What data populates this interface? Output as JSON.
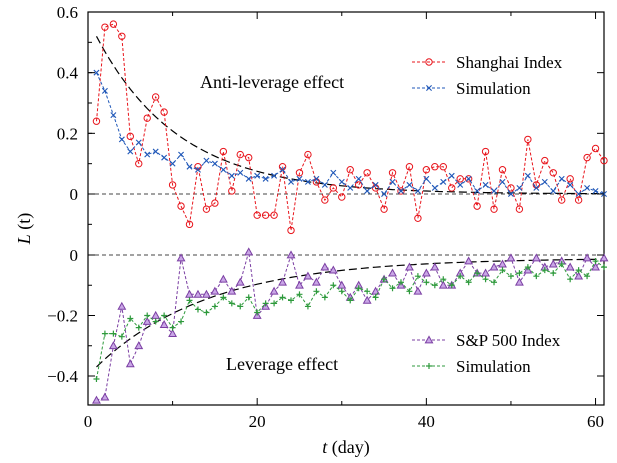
{
  "chart_data": {
    "type": "line",
    "x_label": "t (day)",
    "x_label_italic": "t",
    "x_label_unit": " (day)",
    "y_label": "L (t)",
    "y_label_italic": "L",
    "y_label_arg": " (t)",
    "x_range": [
      0,
      61
    ],
    "x_ticks": [
      0,
      20,
      40,
      60
    ],
    "x_tick_labels": [
      "0",
      "20",
      "40",
      "60"
    ],
    "panels": [
      {
        "id": "top",
        "y_range": [
          -0.1,
          0.6
        ],
        "y_ticks": [
          0,
          0.2,
          0.4,
          0.6
        ],
        "y_tick_labels": [
          "0",
          "0.2",
          "0.4",
          "0.6"
        ],
        "annotation": "Anti-leverage effect",
        "zero_line": true,
        "series": [
          {
            "name": "Shanghai Index",
            "marker": "circle",
            "color": "#e8141b",
            "x": [
              1,
              2,
              3,
              4,
              5,
              6,
              7,
              8,
              9,
              10,
              11,
              12,
              13,
              14,
              15,
              16,
              17,
              18,
              19,
              20,
              21,
              22,
              23,
              24,
              25,
              26,
              27,
              28,
              29,
              30,
              31,
              32,
              33,
              34,
              35,
              36,
              37,
              38,
              39,
              40,
              41,
              42,
              43,
              44,
              45,
              46,
              47,
              48,
              49,
              50,
              51,
              52,
              53,
              54,
              55,
              56,
              57,
              58,
              59,
              60,
              61
            ],
            "y": [
              0.24,
              0.55,
              0.56,
              0.52,
              0.19,
              0.1,
              0.25,
              0.32,
              0.27,
              0.03,
              -0.04,
              -0.1,
              0.09,
              -0.05,
              -0.03,
              0.14,
              0.01,
              0.13,
              0.12,
              -0.07,
              -0.07,
              -0.07,
              0.09,
              -0.12,
              0.07,
              0.13,
              0.04,
              -0.02,
              0.02,
              -0.01,
              0.08,
              0.03,
              0.07,
              0.02,
              -0.05,
              0.07,
              0.01,
              0.09,
              -0.08,
              0.08,
              0.09,
              0.09,
              0.02,
              0.05,
              0.05,
              -0.04,
              0.14,
              -0.05,
              0.08,
              0.02,
              -0.05,
              0.18,
              0.03,
              0.11,
              0.07,
              -0.02,
              0.05,
              -0.02,
              0.12,
              0.15,
              0.11
            ]
          },
          {
            "name": "Simulation",
            "marker": "x",
            "color": "#1f57b8",
            "x": [
              1,
              2,
              3,
              4,
              5,
              6,
              7,
              8,
              9,
              10,
              11,
              12,
              13,
              14,
              15,
              16,
              17,
              18,
              19,
              20,
              21,
              22,
              23,
              24,
              25,
              26,
              27,
              28,
              29,
              30,
              31,
              32,
              33,
              34,
              35,
              36,
              37,
              38,
              39,
              40,
              41,
              42,
              43,
              44,
              45,
              46,
              47,
              48,
              49,
              50,
              51,
              52,
              53,
              54,
              55,
              56,
              57,
              58,
              59,
              60,
              61
            ],
            "y": [
              0.4,
              0.34,
              0.26,
              0.18,
              0.14,
              0.17,
              0.13,
              0.14,
              0.12,
              0.1,
              0.13,
              0.09,
              0.08,
              0.11,
              0.1,
              0.08,
              0.06,
              0.07,
              0.05,
              0.06,
              0.05,
              0.06,
              0.08,
              0.04,
              0.05,
              0.04,
              0.05,
              0.03,
              0.07,
              0.04,
              0.02,
              0.05,
              0.01,
              0.03,
              0.0,
              0.04,
              0.01,
              0.03,
              0.01,
              0.05,
              0.02,
              0.04,
              0.06,
              0.03,
              0.05,
              0.01,
              0.03,
              0.01,
              0.04,
              0.0,
              0.02,
              0.06,
              0.02,
              0.04,
              0.01,
              0.05,
              0.03,
              0.0,
              0.02,
              0.01,
              0.0
            ]
          }
        ],
        "fit": {
          "a": 0.52,
          "b": 0.102,
          "c": 0.0
        }
      },
      {
        "id": "bottom",
        "y_range": [
          -0.5,
          0.0
        ],
        "y_ticks": [
          0,
          -0.2,
          -0.4
        ],
        "y_tick_labels": [
          "0",
          "−0.2",
          "−0.4"
        ],
        "annotation": "Leverage effect",
        "zero_line": true,
        "series": [
          {
            "name": "S&P 500 Index",
            "marker": "triangle",
            "color": "#7b3fa3",
            "x": [
              1,
              2,
              3,
              4,
              5,
              6,
              7,
              8,
              9,
              10,
              11,
              12,
              13,
              14,
              15,
              16,
              17,
              18,
              19,
              20,
              21,
              22,
              23,
              24,
              25,
              26,
              27,
              28,
              29,
              30,
              31,
              32,
              33,
              34,
              35,
              36,
              37,
              38,
              39,
              40,
              41,
              42,
              43,
              44,
              45,
              46,
              47,
              48,
              49,
              50,
              51,
              52,
              53,
              54,
              55,
              56,
              57,
              58,
              59,
              60,
              61
            ],
            "y": [
              -0.48,
              -0.47,
              -0.3,
              -0.17,
              -0.36,
              -0.3,
              -0.22,
              -0.2,
              -0.23,
              -0.26,
              -0.01,
              -0.13,
              -0.13,
              -0.13,
              -0.12,
              -0.08,
              -0.12,
              -0.09,
              0.01,
              -0.2,
              -0.17,
              -0.12,
              -0.09,
              0.0,
              -0.1,
              -0.07,
              -0.09,
              -0.04,
              -0.05,
              -0.1,
              -0.14,
              -0.1,
              -0.15,
              -0.12,
              -0.08,
              -0.06,
              -0.1,
              -0.04,
              -0.12,
              -0.06,
              -0.04,
              -0.1,
              -0.1,
              -0.06,
              -0.02,
              -0.06,
              -0.06,
              -0.04,
              -0.03,
              -0.01,
              -0.09,
              -0.05,
              -0.01,
              -0.04,
              -0.03,
              -0.02,
              -0.04,
              -0.07,
              -0.01,
              -0.04,
              -0.01
            ]
          },
          {
            "name": "Simulation",
            "marker": "plus",
            "color": "#2e9a3c",
            "x": [
              1,
              2,
              3,
              4,
              5,
              6,
              7,
              8,
              9,
              10,
              11,
              12,
              13,
              14,
              15,
              16,
              17,
              18,
              19,
              20,
              21,
              22,
              23,
              24,
              25,
              26,
              27,
              28,
              29,
              30,
              31,
              32,
              33,
              34,
              35,
              36,
              37,
              38,
              39,
              40,
              41,
              42,
              43,
              44,
              45,
              46,
              47,
              48,
              49,
              50,
              51,
              52,
              53,
              54,
              55,
              56,
              57,
              58,
              59,
              60,
              61
            ],
            "y": [
              -0.41,
              -0.26,
              -0.26,
              -0.27,
              -0.21,
              -0.24,
              -0.2,
              -0.22,
              -0.2,
              -0.24,
              -0.22,
              -0.15,
              -0.18,
              -0.19,
              -0.17,
              -0.14,
              -0.16,
              -0.17,
              -0.14,
              -0.19,
              -0.16,
              -0.16,
              -0.14,
              -0.15,
              -0.13,
              -0.17,
              -0.12,
              -0.14,
              -0.1,
              -0.12,
              -0.15,
              -0.11,
              -0.12,
              -0.14,
              -0.08,
              -0.11,
              -0.09,
              -0.12,
              -0.07,
              -0.09,
              -0.1,
              -0.08,
              -0.1,
              -0.07,
              -0.09,
              -0.06,
              -0.08,
              -0.09,
              -0.05,
              -0.07,
              -0.06,
              -0.04,
              -0.07,
              -0.05,
              -0.06,
              -0.03,
              -0.08,
              -0.05,
              -0.07,
              -0.02,
              -0.04
            ]
          }
        ],
        "fit": {
          "a": -0.36,
          "b": 0.075,
          "c": -0.01
        }
      }
    ]
  }
}
